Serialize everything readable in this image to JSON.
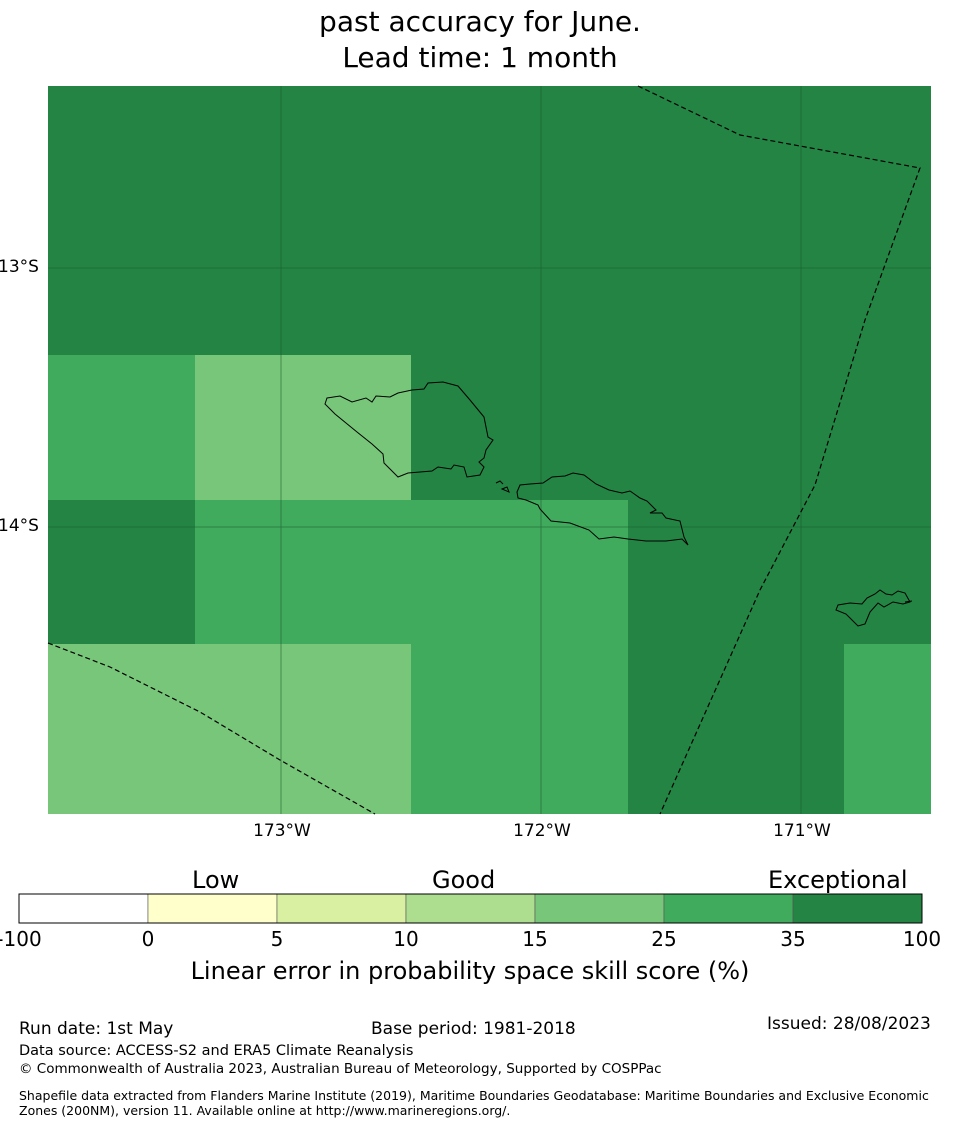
{
  "title": {
    "line1": "past accuracy for June.",
    "line2": "Lead time: 1 month"
  },
  "map": {
    "lat_labels": [
      "13°S",
      "14°S"
    ],
    "lon_labels": [
      "173°W",
      "172°W",
      "171°W"
    ],
    "colors": {
      "c15_25": "#78c679",
      "c25_35": "#41ab5d",
      "c35_100": "#238443",
      "grid": "#1a5a2e",
      "coast": "#000000"
    }
  },
  "legend": {
    "categories": [
      "Low",
      "Good",
      "Exceptional"
    ],
    "ticks": [
      "-100",
      "0",
      "5",
      "10",
      "15",
      "25",
      "35",
      "100"
    ],
    "colors": [
      "#ffffff",
      "#ffffcc",
      "#d9f0a3",
      "#addd8e",
      "#78c679",
      "#41ab5d",
      "#238443"
    ],
    "title": "Linear error in probability space skill score (%)"
  },
  "footer": {
    "run_date": "Run date: 1st May",
    "base_period": "Base period: 1981-2018",
    "issued": "Issued: 28/08/2023",
    "data_source": "Data source: ACCESS-S2 and ERA5 Climate Reanalysis",
    "copyright": "© Commonwealth of Australia 2023, Australian Bureau of Meteorology, Supported by COSPPac",
    "shapefile": "Shapefile data extracted from Flanders Marine Institute (2019), Maritime Boundaries Geodatabase: Maritime Boundaries and Exclusive Economic Zones (200NM), version 11. Available online at http://www.marineregions.org/."
  }
}
